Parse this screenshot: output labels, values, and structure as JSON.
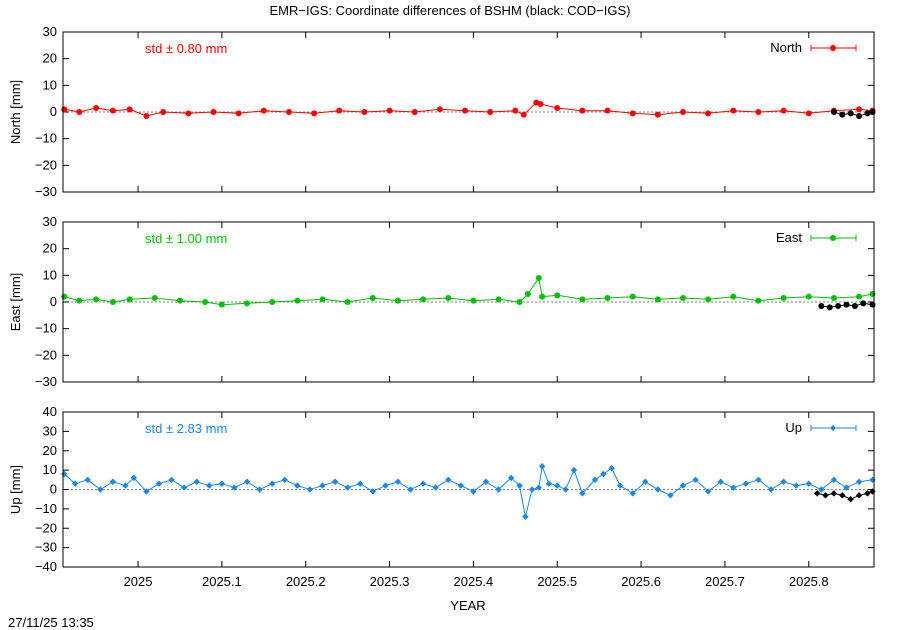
{
  "title": "EMR−IGS: Coordinate differences of BSHM (black: COD−IGS)",
  "timestamp": "27/11/25 13:35",
  "xlabel": "YEAR",
  "x_ticks": [
    "2025",
    "2025.1",
    "2025.2",
    "2025.3",
    "2025.4",
    "2025.5",
    "2025.6",
    "2025.7",
    "2025.8"
  ],
  "colors": {
    "north": "#ff0000",
    "east": "#00c000",
    "up": "#1e88e5",
    "reference": "#000000"
  },
  "chart_data": [
    {
      "type": "scatter",
      "component": "north",
      "ylabel": "North [mm]",
      "legend": "North",
      "legend_position": "top-right",
      "std_label": "std ± 0.80 mm",
      "xlim": [
        2024.9105,
        2025.8778
      ],
      "ylim": [
        -30,
        30
      ],
      "y_ticks": [
        "30",
        "20",
        "10",
        "0",
        "−10",
        "−20",
        "−30"
      ],
      "y_tick_values": [
        30,
        20,
        10,
        0,
        -10,
        -20,
        -30
      ],
      "zero_line": true,
      "series": [
        {
          "name": "North",
          "x": [
            2024.912,
            2024.93,
            2024.95,
            2024.97,
            2024.99,
            2025.01,
            2025.03,
            2025.06,
            2025.09,
            2025.12,
            2025.15,
            2025.18,
            2025.21,
            2025.24,
            2025.27,
            2025.3,
            2025.33,
            2025.36,
            2025.39,
            2025.42,
            2025.45,
            2025.46,
            2025.475,
            2025.48,
            2025.5,
            2025.53,
            2025.56,
            2025.59,
            2025.62,
            2025.65,
            2025.68,
            2025.71,
            2025.74,
            2025.77,
            2025.8,
            2025.83,
            2025.86,
            2025.876
          ],
          "y": [
            1,
            0,
            1.5,
            0.5,
            1,
            -1.5,
            0,
            -0.5,
            0,
            -0.5,
            0.5,
            0,
            -0.5,
            0.5,
            0,
            0.5,
            0,
            1,
            0.5,
            0,
            0.5,
            -1,
            3.5,
            3,
            1.5,
            0.5,
            0.5,
            -0.5,
            -1,
            0,
            -0.5,
            0.5,
            0,
            0.5,
            -0.5,
            0.5,
            1,
            0.5
          ]
        },
        {
          "name": "COD-IGS",
          "x": [
            2025.83,
            2025.84,
            2025.85,
            2025.86,
            2025.87,
            2025.876
          ],
          "y": [
            0,
            -1,
            -0.5,
            -1.5,
            -0.5,
            0
          ]
        }
      ]
    },
    {
      "type": "scatter",
      "component": "east",
      "ylabel": "East [mm]",
      "legend": "East",
      "legend_position": "top-right",
      "std_label": "std ± 1.00 mm",
      "xlim": [
        2024.9105,
        2025.8778
      ],
      "ylim": [
        -30,
        30
      ],
      "y_ticks": [
        "30",
        "20",
        "10",
        "0",
        "−10",
        "−20",
        "−30"
      ],
      "y_tick_values": [
        30,
        20,
        10,
        0,
        -10,
        -20,
        -30
      ],
      "zero_line": true,
      "series": [
        {
          "name": "East",
          "x": [
            2024.912,
            2024.93,
            2024.95,
            2024.97,
            2024.99,
            2025.02,
            2025.05,
            2025.08,
            2025.1,
            2025.13,
            2025.16,
            2025.19,
            2025.22,
            2025.25,
            2025.28,
            2025.31,
            2025.34,
            2025.37,
            2025.4,
            2025.43,
            2025.455,
            2025.465,
            2025.478,
            2025.482,
            2025.5,
            2025.53,
            2025.56,
            2025.59,
            2025.62,
            2025.65,
            2025.68,
            2025.71,
            2025.74,
            2025.77,
            2025.8,
            2025.83,
            2025.86,
            2025.876
          ],
          "y": [
            2,
            0.5,
            1,
            0,
            1,
            1.5,
            0.5,
            0,
            -1,
            -0.5,
            0,
            0.5,
            1,
            0,
            1.5,
            0.5,
            1,
            1.5,
            0.5,
            1,
            0,
            3,
            9,
            2,
            2.5,
            1,
            1.5,
            2,
            1,
            1.5,
            1,
            2,
            0.5,
            1.5,
            2,
            1.5,
            2,
            3
          ]
        },
        {
          "name": "COD-IGS",
          "x": [
            2025.815,
            2025.825,
            2025.835,
            2025.845,
            2025.855,
            2025.865,
            2025.876
          ],
          "y": [
            -1.5,
            -2,
            -1.5,
            -1,
            -1.5,
            -0.5,
            -1
          ]
        }
      ]
    },
    {
      "type": "scatter",
      "component": "up",
      "ylabel": "Up [mm]",
      "legend": "Up",
      "legend_position": "top-right",
      "std_label": "std ± 2.83 mm",
      "xlim": [
        2024.9105,
        2025.8778
      ],
      "ylim": [
        -40,
        40
      ],
      "y_ticks": [
        "40",
        "30",
        "20",
        "10",
        "0",
        "−10",
        "−20",
        "−30",
        "−40"
      ],
      "y_tick_values": [
        40,
        30,
        20,
        10,
        0,
        -10,
        -20,
        -30,
        -40
      ],
      "zero_line": true,
      "series": [
        {
          "name": "Up",
          "x": [
            2024.912,
            2024.925,
            2024.94,
            2024.955,
            2024.97,
            2024.985,
            2024.995,
            2025.01,
            2025.025,
            2025.04,
            2025.055,
            2025.07,
            2025.085,
            2025.1,
            2025.115,
            2025.13,
            2025.145,
            2025.16,
            2025.175,
            2025.19,
            2025.205,
            2025.22,
            2025.235,
            2025.25,
            2025.265,
            2025.28,
            2025.295,
            2025.31,
            2025.325,
            2025.34,
            2025.355,
            2025.37,
            2025.385,
            2025.4,
            2025.415,
            2025.43,
            2025.445,
            2025.455,
            2025.462,
            2025.47,
            2025.478,
            2025.482,
            2025.49,
            2025.5,
            2025.51,
            2025.52,
            2025.53,
            2025.545,
            2025.555,
            2025.565,
            2025.575,
            2025.59,
            2025.605,
            2025.62,
            2025.635,
            2025.65,
            2025.665,
            2025.68,
            2025.695,
            2025.71,
            2025.725,
            2025.74,
            2025.755,
            2025.77,
            2025.785,
            2025.8,
            2025.815,
            2025.83,
            2025.845,
            2025.86,
            2025.876
          ],
          "y": [
            8,
            3,
            5,
            0,
            4,
            2,
            6,
            -1,
            3,
            5,
            1,
            4,
            2,
            3,
            1,
            4,
            0,
            3,
            5,
            2,
            0,
            2,
            4,
            1,
            3,
            -1,
            2,
            4,
            0,
            3,
            1,
            5,
            2,
            -1,
            4,
            0,
            6,
            2,
            -14,
            0,
            1,
            12,
            3,
            2,
            0,
            10,
            -2,
            5,
            8,
            11,
            2,
            -2,
            4,
            0,
            -3,
            2,
            5,
            -1,
            4,
            1,
            3,
            5,
            0,
            4,
            2,
            3,
            0,
            5,
            1,
            4,
            5
          ]
        },
        {
          "name": "COD-IGS",
          "x": [
            2025.81,
            2025.82,
            2025.83,
            2025.84,
            2025.85,
            2025.86,
            2025.87,
            2025.876
          ],
          "y": [
            -2,
            -3,
            -2,
            -3,
            -5,
            -3,
            -2,
            -1
          ]
        }
      ]
    }
  ]
}
